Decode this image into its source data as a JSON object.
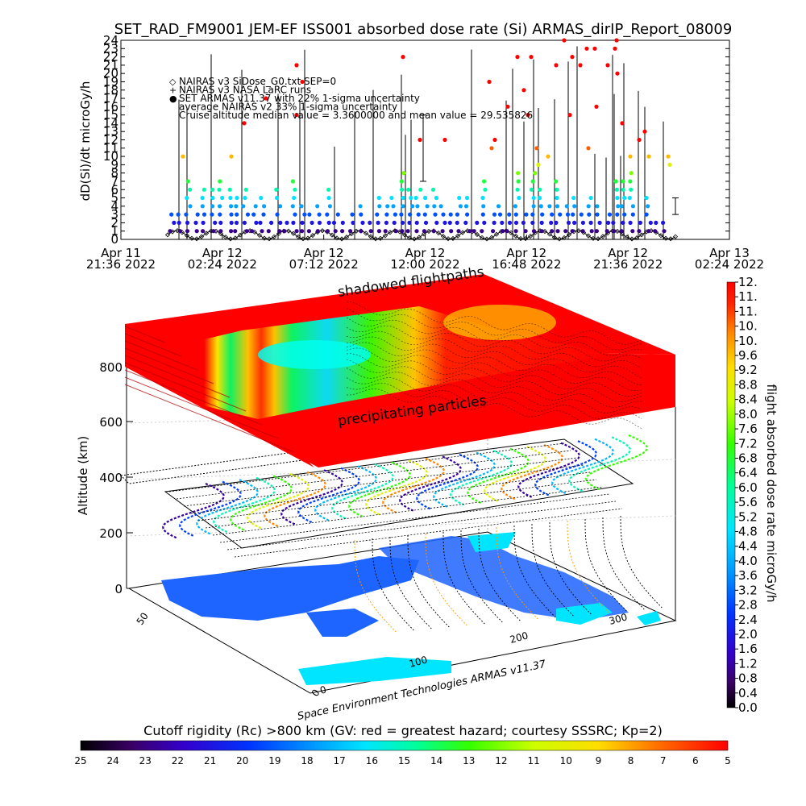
{
  "title": "SET_RAD_FM9001  JEM-EF ISS001 absorbed dose rate (Si) ARMAS_dirIP_Report_08009",
  "top_chart": {
    "ylabel": "dD(Si)/dt microGy/h",
    "ylim": [
      0,
      24
    ],
    "yticks": [
      "0",
      "1",
      "2",
      "3",
      "4",
      "5",
      "6",
      "7",
      "8",
      "9",
      "10",
      "11",
      "12",
      "13",
      "14",
      "15",
      "16",
      "17",
      "18",
      "19",
      "20",
      "21",
      "22",
      "23",
      "24"
    ],
    "xticks": [
      {
        "line1": "Apr 11",
        "line2": "21:36 2022"
      },
      {
        "line1": "Apr 12",
        "line2": "02:24 2022"
      },
      {
        "line1": "Apr 12",
        "line2": "07:12 2022"
      },
      {
        "line1": "Apr 12",
        "line2": "12:00 2022"
      },
      {
        "line1": "Apr 12",
        "line2": "16:48 2022"
      },
      {
        "line1": "Apr 12",
        "line2": "21:36 2022"
      },
      {
        "line1": "Apr 13",
        "line2": "02:24 2022"
      }
    ],
    "legend": [
      {
        "symbol": "◇",
        "text": "NAIRAS v3 SiDose_G0.txt SEP=0"
      },
      {
        "symbol": "+",
        "text": "NAIRAS v3 NASA LaRC runs"
      },
      {
        "symbol": "●",
        "text": "SET ARMAS v11.37 with 22% 1-sigma uncertainty"
      },
      {
        "symbol": "",
        "text": "average NAIRAS v2 33% 1-sigma uncertainty"
      },
      {
        "symbol": "",
        "text": "Cruise altitude median value = 3.3600000 and mean value = 29.535826"
      }
    ]
  },
  "panel3d": {
    "zlabel": "Altitude (km)",
    "zticks": [
      "0",
      "200",
      "400",
      "600",
      "800"
    ],
    "lat_ticks": [
      "0",
      "50"
    ],
    "lon_ticks": [
      "0",
      "100",
      "200",
      "300"
    ],
    "label_top": "shadowed flightpaths",
    "label_mid": "precipitating particles",
    "credit": "Space Environment Technologies ARMAS v11.37"
  },
  "colorbar_right": {
    "label": "flight absorbed dose rate microGy/h",
    "ticks": [
      "0.0",
      "0.4",
      "0.8",
      "1.2",
      "1.6",
      "2.0",
      "2.4",
      "2.8",
      "3.2",
      "3.6",
      "4.0",
      "4.4",
      "4.8",
      "5.2",
      "5.6",
      "6.0",
      "6.4",
      "6.8",
      "7.2",
      "7.6",
      "8.0",
      "8.4",
      "8.8",
      "9.2",
      "9.6",
      "10.",
      "10.",
      "11.",
      "11.",
      "12."
    ]
  },
  "colorbar_bottom": {
    "label": "Cutoff rigidity (Rc) >800 km (GV: red = greatest hazard; courtesy SSSRC; Kp=2)",
    "ticks": [
      "25",
      "24",
      "23",
      "22",
      "21",
      "20",
      "19",
      "18",
      "17",
      "16",
      "15",
      "14",
      "13",
      "12",
      "11",
      "10",
      "9",
      "8",
      "7",
      "6",
      "5"
    ]
  },
  "colors": {
    "background": "#ffffff",
    "hazard_red": "#ff0000",
    "nairas_black": "#000000",
    "land_blue": "#1e64ff",
    "ocean_cyan": "#00e5ff"
  },
  "chart_data": {
    "type": "scatter",
    "title": "SET_RAD_FM9001  JEM-EF ISS001 absorbed dose rate (Si) ARMAS_dirIP_Report_08009",
    "xlabel": "",
    "ylabel": "dD(Si)/dt microGy/h",
    "ylim": [
      0,
      24
    ],
    "x_range": [
      "Apr 11 21:36 2022",
      "Apr 13 02:24 2022"
    ],
    "x_data_range": [
      "Apr 12 00:10 2022",
      "Apr 12 23:10 2022"
    ],
    "series": [
      {
        "name": "NAIRAS v3 SiDose_G0.txt SEP=0",
        "marker": "diamond",
        "pattern": "periodic orbit oscillation between 0 and ~1"
      },
      {
        "name": "NAIRAS v3 NASA LaRC runs",
        "marker": "plus"
      },
      {
        "name": "SET ARMAS v11.37 with 22% 1-sigma uncertainty",
        "marker": "dot",
        "typical_range": [
          0,
          9
        ],
        "max_spikes": 24
      }
    ],
    "median": 3.36,
    "mean": 29.535826
  }
}
